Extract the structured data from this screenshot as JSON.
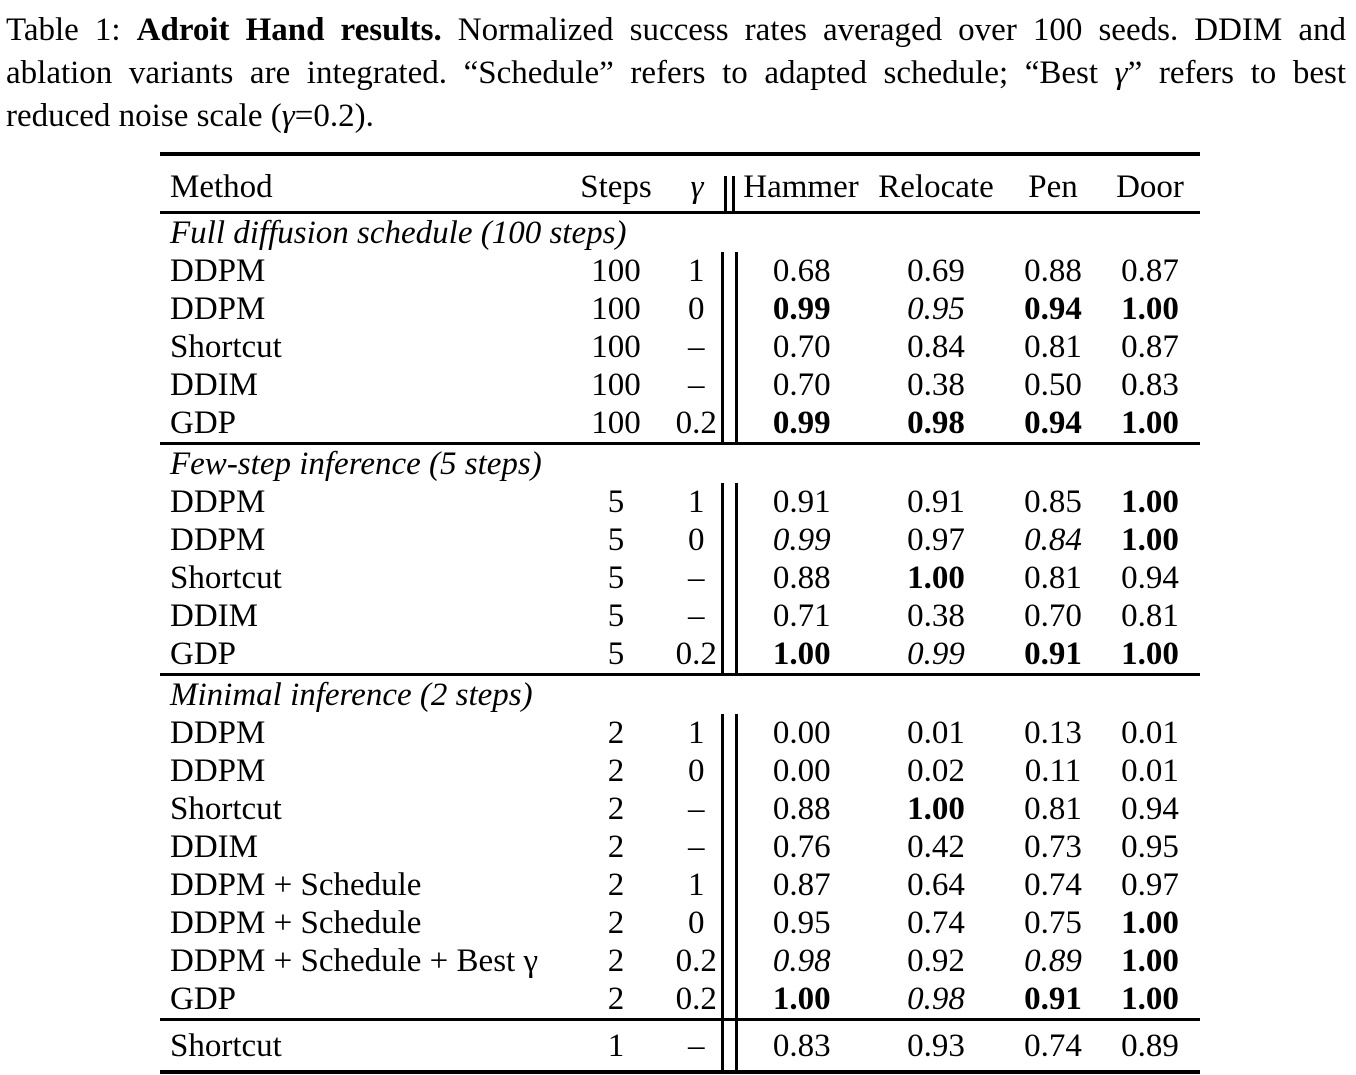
{
  "caption": {
    "label": "Table 1: ",
    "title": "Adroit Hand results.",
    "body1": "  Normalized success rates averaged over 100 seeds.  DDIM and ablation variants are integrated.  “Schedule” refers to adapted schedule; “Best ",
    "gamma1": "γ",
    "body2": "” refers to best reduced noise scale (",
    "gamma2": "γ",
    "body3": "=0.2)."
  },
  "table": {
    "columns": [
      "Method",
      "Steps",
      "γ",
      "Hammer",
      "Relocate",
      "Pen",
      "Door"
    ],
    "sections": [
      {
        "label": "Full diffusion schedule (100 steps)",
        "rows": [
          {
            "method": "DDPM",
            "steps": "100",
            "gamma": "1",
            "values": [
              {
                "v": "0.68",
                "f": "n"
              },
              {
                "v": "0.69",
                "f": "n"
              },
              {
                "v": "0.88",
                "f": "n"
              },
              {
                "v": "0.87",
                "f": "n"
              }
            ]
          },
          {
            "method": "DDPM",
            "steps": "100",
            "gamma": "0",
            "values": [
              {
                "v": "0.99",
                "f": "b"
              },
              {
                "v": "0.95",
                "f": "i"
              },
              {
                "v": "0.94",
                "f": "b"
              },
              {
                "v": "1.00",
                "f": "b"
              }
            ]
          },
          {
            "method": "Shortcut",
            "steps": "100",
            "gamma": "–",
            "values": [
              {
                "v": "0.70",
                "f": "n"
              },
              {
                "v": "0.84",
                "f": "n"
              },
              {
                "v": "0.81",
                "f": "n"
              },
              {
                "v": "0.87",
                "f": "n"
              }
            ]
          },
          {
            "method": "DDIM",
            "steps": "100",
            "gamma": "–",
            "values": [
              {
                "v": "0.70",
                "f": "n"
              },
              {
                "v": "0.38",
                "f": "n"
              },
              {
                "v": "0.50",
                "f": "n"
              },
              {
                "v": "0.83",
                "f": "n"
              }
            ]
          },
          {
            "method": "GDP",
            "steps": "100",
            "gamma": "0.2",
            "values": [
              {
                "v": "0.99",
                "f": "b"
              },
              {
                "v": "0.98",
                "f": "b"
              },
              {
                "v": "0.94",
                "f": "b"
              },
              {
                "v": "1.00",
                "f": "b"
              }
            ]
          }
        ]
      },
      {
        "label": "Few-step inference (5 steps)",
        "rows": [
          {
            "method": "DDPM",
            "steps": "5",
            "gamma": "1",
            "values": [
              {
                "v": "0.91",
                "f": "n"
              },
              {
                "v": "0.91",
                "f": "n"
              },
              {
                "v": "0.85",
                "f": "n"
              },
              {
                "v": "1.00",
                "f": "b"
              }
            ]
          },
          {
            "method": "DDPM",
            "steps": "5",
            "gamma": "0",
            "values": [
              {
                "v": "0.99",
                "f": "i"
              },
              {
                "v": "0.97",
                "f": "n"
              },
              {
                "v": "0.84",
                "f": "i"
              },
              {
                "v": "1.00",
                "f": "b"
              }
            ]
          },
          {
            "method": "Shortcut",
            "steps": "5",
            "gamma": "–",
            "values": [
              {
                "v": "0.88",
                "f": "n"
              },
              {
                "v": "1.00",
                "f": "b"
              },
              {
                "v": "0.81",
                "f": "n"
              },
              {
                "v": "0.94",
                "f": "n"
              }
            ]
          },
          {
            "method": "DDIM",
            "steps": "5",
            "gamma": "–",
            "values": [
              {
                "v": "0.71",
                "f": "n"
              },
              {
                "v": "0.38",
                "f": "n"
              },
              {
                "v": "0.70",
                "f": "n"
              },
              {
                "v": "0.81",
                "f": "n"
              }
            ]
          },
          {
            "method": "GDP",
            "steps": "5",
            "gamma": "0.2",
            "values": [
              {
                "v": "1.00",
                "f": "b"
              },
              {
                "v": "0.99",
                "f": "i"
              },
              {
                "v": "0.91",
                "f": "b"
              },
              {
                "v": "1.00",
                "f": "b"
              }
            ]
          }
        ]
      },
      {
        "label": "Minimal inference (2 steps)",
        "rows": [
          {
            "method": "DDPM",
            "steps": "2",
            "gamma": "1",
            "values": [
              {
                "v": "0.00",
                "f": "n"
              },
              {
                "v": "0.01",
                "f": "n"
              },
              {
                "v": "0.13",
                "f": "n"
              },
              {
                "v": "0.01",
                "f": "n"
              }
            ]
          },
          {
            "method": "DDPM",
            "steps": "2",
            "gamma": "0",
            "values": [
              {
                "v": "0.00",
                "f": "n"
              },
              {
                "v": "0.02",
                "f": "n"
              },
              {
                "v": "0.11",
                "f": "n"
              },
              {
                "v": "0.01",
                "f": "n"
              }
            ]
          },
          {
            "method": "Shortcut",
            "steps": "2",
            "gamma": "–",
            "values": [
              {
                "v": "0.88",
                "f": "n"
              },
              {
                "v": "1.00",
                "f": "b"
              },
              {
                "v": "0.81",
                "f": "n"
              },
              {
                "v": "0.94",
                "f": "n"
              }
            ]
          },
          {
            "method": "DDIM",
            "steps": "2",
            "gamma": "–",
            "values": [
              {
                "v": "0.76",
                "f": "n"
              },
              {
                "v": "0.42",
                "f": "n"
              },
              {
                "v": "0.73",
                "f": "n"
              },
              {
                "v": "0.95",
                "f": "n"
              }
            ]
          },
          {
            "method": "DDPM + Schedule",
            "steps": "2",
            "gamma": "1",
            "values": [
              {
                "v": "0.87",
                "f": "n"
              },
              {
                "v": "0.64",
                "f": "n"
              },
              {
                "v": "0.74",
                "f": "n"
              },
              {
                "v": "0.97",
                "f": "n"
              }
            ]
          },
          {
            "method": "DDPM + Schedule",
            "steps": "2",
            "gamma": "0",
            "values": [
              {
                "v": "0.95",
                "f": "n"
              },
              {
                "v": "0.74",
                "f": "n"
              },
              {
                "v": "0.75",
                "f": "n"
              },
              {
                "v": "1.00",
                "f": "b"
              }
            ]
          },
          {
            "method": "DDPM + Schedule + Best γ",
            "steps": "2",
            "gamma": "0.2",
            "values": [
              {
                "v": "0.98",
                "f": "i"
              },
              {
                "v": "0.92",
                "f": "n"
              },
              {
                "v": "0.89",
                "f": "i"
              },
              {
                "v": "1.00",
                "f": "b"
              }
            ]
          },
          {
            "method": "GDP",
            "steps": "2",
            "gamma": "0.2",
            "values": [
              {
                "v": "1.00",
                "f": "b"
              },
              {
                "v": "0.98",
                "f": "i"
              },
              {
                "v": "0.91",
                "f": "b"
              },
              {
                "v": "1.00",
                "f": "b"
              }
            ]
          }
        ]
      }
    ],
    "footer_row": {
      "method": "Shortcut",
      "steps": "1",
      "gamma": "–",
      "values": [
        {
          "v": "0.83",
          "f": "n"
        },
        {
          "v": "0.93",
          "f": "n"
        },
        {
          "v": "0.74",
          "f": "n"
        },
        {
          "v": "0.89",
          "f": "n"
        }
      ]
    }
  }
}
